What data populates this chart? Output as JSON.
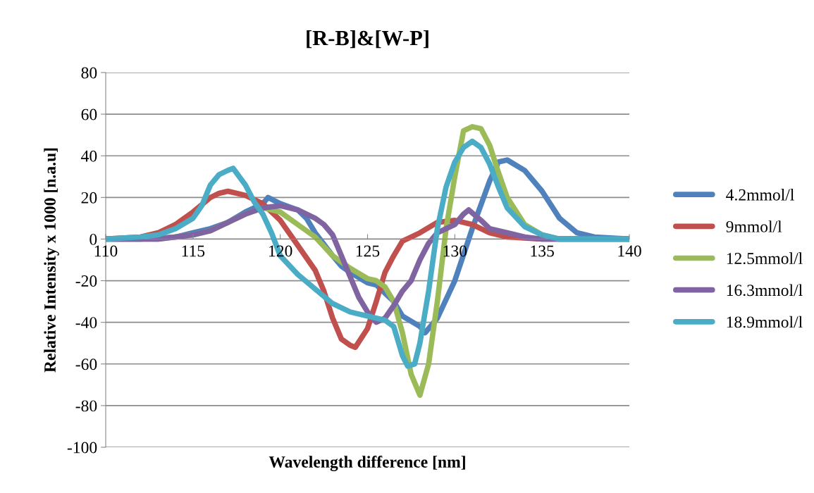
{
  "chart_data": {
    "type": "line",
    "title": "[R-B]&[W-P]",
    "xlabel": "Wavelength difference [nm]",
    "ylabel": "Relative Intensity x 1000 [n.a.u]",
    "xlim": [
      110,
      140
    ],
    "xticks": [
      110,
      115,
      120,
      125,
      130,
      135,
      140
    ],
    "ylim": [
      -100,
      80
    ],
    "yticks": [
      -100,
      -80,
      -60,
      -40,
      -20,
      0,
      20,
      40,
      60,
      80
    ],
    "grid": "y",
    "legend": "right",
    "marker": "none",
    "line_style": "solid",
    "series": [
      {
        "name": "4.2mmol/l",
        "color": "#4f81bd",
        "x": [
          110,
          112,
          114,
          115,
          116,
          117,
          118,
          118.5,
          119,
          119.3,
          120,
          121,
          121.5,
          122,
          123,
          123.5,
          124,
          125,
          125.5,
          126,
          126.5,
          127,
          128,
          128.3,
          129,
          130,
          131,
          132,
          132.5,
          133,
          134,
          135,
          136,
          137,
          138,
          140
        ],
        "values": [
          0,
          0,
          1,
          3,
          5,
          8,
          13,
          15,
          17,
          20,
          17,
          14,
          10,
          3,
          -8,
          -13,
          -16,
          -21,
          -22,
          -26,
          -30,
          -37,
          -42,
          -45,
          -38,
          -20,
          5,
          28,
          37,
          38,
          33,
          23,
          10,
          3,
          1,
          0
        ]
      },
      {
        "name": "9mmol/l",
        "color": "#c0504d",
        "x": [
          110,
          112,
          113,
          114,
          115,
          116,
          116.5,
          117,
          118,
          119,
          120,
          121,
          122,
          122.5,
          123,
          123.5,
          124,
          124.3,
          125,
          125.5,
          126,
          126.5,
          127,
          128,
          129,
          130,
          131,
          132,
          133,
          135,
          140
        ],
        "values": [
          0,
          1,
          3,
          7,
          13,
          20,
          22,
          23,
          21,
          17,
          9,
          -3,
          -15,
          -25,
          -38,
          -48,
          -51,
          -52,
          -43,
          -30,
          -16,
          -8,
          -1,
          3,
          8,
          9,
          7,
          3,
          1,
          0,
          0
        ]
      },
      {
        "name": "12.5mmol/l",
        "color": "#9bbb59",
        "x": [
          110,
          113,
          115,
          116,
          117,
          118,
          119,
          120,
          121,
          122,
          123,
          124,
          125,
          125.5,
          126,
          126.5,
          127,
          127.5,
          128,
          128.5,
          129,
          129.5,
          130,
          130.5,
          131,
          131.5,
          132,
          132.5,
          133,
          134,
          135,
          136,
          140
        ],
        "values": [
          0,
          0,
          2,
          4,
          8,
          12,
          15,
          13,
          7,
          1,
          -8,
          -14,
          -19,
          -20,
          -23,
          -30,
          -45,
          -65,
          -75,
          -60,
          -30,
          5,
          30,
          52,
          54,
          53,
          45,
          32,
          20,
          7,
          2,
          0,
          0
        ]
      },
      {
        "name": "16.3mmol/l",
        "color": "#8064a2",
        "x": [
          110,
          113,
          114,
          115,
          116,
          117,
          118,
          119,
          120,
          121,
          122,
          122.5,
          123,
          123.5,
          124,
          124.5,
          125,
          125.5,
          126,
          126.5,
          127,
          127.5,
          128,
          128.5,
          129,
          130,
          130.5,
          130.8,
          131.5,
          132,
          133,
          134,
          135,
          140
        ],
        "values": [
          0,
          0,
          1,
          2,
          4,
          8,
          12,
          15,
          16,
          14,
          10,
          7,
          2,
          -8,
          -18,
          -28,
          -35,
          -40,
          -38,
          -32,
          -25,
          -20,
          -10,
          -2,
          3,
          7,
          12,
          14,
          9,
          5,
          3,
          1,
          0,
          0
        ]
      },
      {
        "name": "18.9mmol/l",
        "color": "#4bacc6",
        "x": [
          110,
          112,
          113,
          114,
          115,
          115.5,
          116,
          116.5,
          117,
          117.3,
          118,
          118.5,
          119,
          119.5,
          120,
          121,
          122,
          123,
          124,
          125,
          126,
          126.5,
          127,
          127.3,
          127.7,
          128,
          128.5,
          129,
          129.5,
          130,
          130.5,
          131,
          131.5,
          132,
          132.5,
          133,
          134,
          135,
          136,
          140
        ],
        "values": [
          0,
          1,
          2,
          5,
          10,
          16,
          26,
          31,
          33,
          34,
          26,
          18,
          12,
          3,
          -8,
          -17,
          -24,
          -31,
          -35,
          -37,
          -39,
          -42,
          -56,
          -61,
          -60,
          -50,
          -25,
          5,
          25,
          37,
          44,
          47,
          44,
          36,
          25,
          15,
          6,
          2,
          0,
          0
        ]
      }
    ]
  }
}
